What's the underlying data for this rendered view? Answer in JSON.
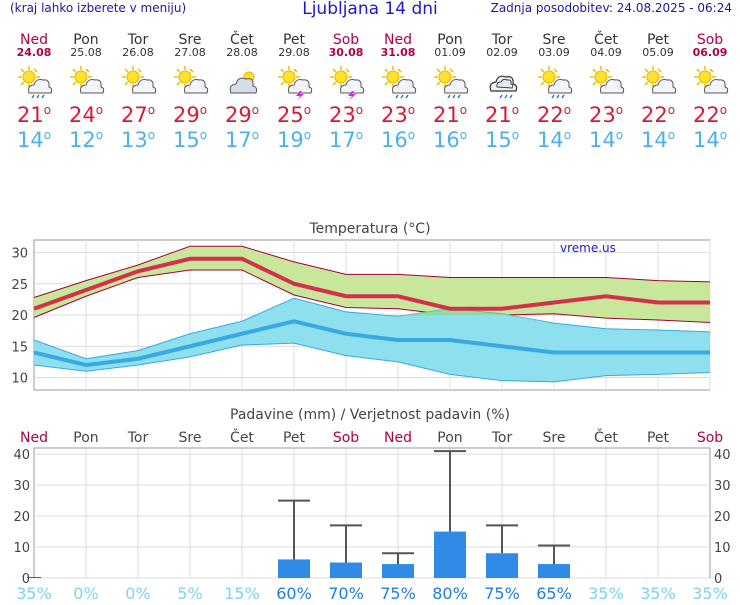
{
  "header": {
    "left_note": "(kraj lahko izberete v meniju)",
    "title": "Ljubljana 14 dni",
    "updated": "Zadnja posodobitev: 24.08.2025 - 06:24"
  },
  "days": [
    {
      "name": "Ned",
      "date": "24.08",
      "weekend": true,
      "icon": "sun-cloud-rain-icon",
      "tmax": "21",
      "tmin": "14"
    },
    {
      "name": "Pon",
      "date": "25.08",
      "weekend": false,
      "icon": "sun-cloud-icon",
      "tmax": "24",
      "tmin": "12"
    },
    {
      "name": "Tor",
      "date": "26.08",
      "weekend": false,
      "icon": "sun-cloud-icon",
      "tmax": "27",
      "tmin": "13"
    },
    {
      "name": "Sre",
      "date": "27.08",
      "weekend": false,
      "icon": "sun-cloud-icon",
      "tmax": "29",
      "tmin": "15"
    },
    {
      "name": "Čet",
      "date": "28.08",
      "weekend": false,
      "icon": "cloud-sun-icon",
      "tmax": "29",
      "tmin": "17"
    },
    {
      "name": "Pet",
      "date": "29.08",
      "weekend": false,
      "icon": "sun-cloud-storm-icon",
      "tmax": "25",
      "tmin": "19"
    },
    {
      "name": "Sob",
      "date": "30.08",
      "weekend": true,
      "icon": "sun-cloud-storm-icon",
      "tmax": "23",
      "tmin": "17"
    },
    {
      "name": "Ned",
      "date": "31.08",
      "weekend": true,
      "icon": "sun-cloud-rain-icon",
      "tmax": "23",
      "tmin": "16"
    },
    {
      "name": "Pon",
      "date": "01.09",
      "weekend": false,
      "icon": "sun-cloud-rain-icon",
      "tmax": "21",
      "tmin": "16"
    },
    {
      "name": "Tor",
      "date": "02.09",
      "weekend": false,
      "icon": "cloud-rain-icon",
      "tmax": "21",
      "tmin": "15"
    },
    {
      "name": "Sre",
      "date": "03.09",
      "weekend": false,
      "icon": "sun-cloud-rain-icon",
      "tmax": "22",
      "tmin": "14"
    },
    {
      "name": "Čet",
      "date": "04.09",
      "weekend": false,
      "icon": "sun-cloud-icon",
      "tmax": "23",
      "tmin": "14"
    },
    {
      "name": "Pet",
      "date": "05.09",
      "weekend": false,
      "icon": "sun-cloud-icon",
      "tmax": "22",
      "tmin": "14"
    },
    {
      "name": "Sob",
      "date": "06.09",
      "weekend": true,
      "icon": "sun-cloud-icon",
      "tmax": "22",
      "tmin": "14"
    }
  ],
  "degree_symbol": "o",
  "chart_data": [
    {
      "type": "line",
      "title": "Temperatura (°C)",
      "watermark": "vreme.us",
      "categories": [
        "Ned",
        "Pon",
        "Tor",
        "Sre",
        "Čet",
        "Pet",
        "Sob",
        "Ned",
        "Pon",
        "Tor",
        "Sre",
        "Čet",
        "Pet",
        "Sob"
      ],
      "ylim": [
        8,
        32
      ],
      "yticks": [
        10,
        15,
        20,
        25,
        30
      ],
      "grid": true,
      "colors": {
        "max": "#d5304b",
        "max_band": "#c9e79b",
        "min": "#3aa8e3",
        "min_band": "#8fe0ee",
        "overlap": "#8fd88f"
      },
      "series": [
        {
          "name": "max",
          "values": [
            21,
            24,
            27,
            29,
            29,
            25,
            23,
            23,
            21,
            21,
            22,
            23,
            22,
            22
          ],
          "upper": [
            22.8,
            25.5,
            28,
            31,
            31,
            28.5,
            26.5,
            26.5,
            26,
            26,
            26,
            26,
            25.5,
            25.3
          ],
          "lower": [
            19.6,
            23,
            26,
            27.2,
            27.2,
            23.2,
            21.2,
            21,
            20,
            20,
            20.2,
            19.5,
            19.2,
            18.8
          ]
        },
        {
          "name": "min",
          "values": [
            14,
            12,
            13,
            15,
            17,
            19,
            17,
            16,
            16,
            15,
            14,
            14,
            14,
            14
          ],
          "upper": [
            16,
            13,
            14.3,
            17,
            19,
            22.7,
            20.5,
            19.8,
            21,
            20.2,
            18.7,
            17.8,
            17.6,
            17.3
          ],
          "lower": [
            12,
            11,
            12,
            13.3,
            15.2,
            15.5,
            13.5,
            12.5,
            10.5,
            9.5,
            9.3,
            10.3,
            10.5,
            10.8
          ]
        }
      ]
    },
    {
      "type": "bar",
      "title": "Padavine (mm) / Verjetnost padavin (%)",
      "categories": [
        "Ned",
        "Pon",
        "Tor",
        "Sre",
        "Čet",
        "Pet",
        "Sob",
        "Ned",
        "Pon",
        "Tor",
        "Sre",
        "Čet",
        "Pet",
        "Sob"
      ],
      "weekend": [
        true,
        false,
        false,
        false,
        false,
        false,
        true,
        true,
        false,
        false,
        false,
        false,
        false,
        true
      ],
      "ylim": [
        0,
        42
      ],
      "yticks": [
        0,
        10,
        20,
        30,
        40
      ],
      "values": [
        0.3,
        0,
        0,
        0,
        0,
        6,
        5,
        4.5,
        15,
        8,
        4.5,
        0,
        0,
        0
      ],
      "err_high": [
        0.3,
        0,
        0,
        0,
        0,
        25,
        17,
        8,
        41,
        17,
        10.5,
        0,
        0,
        0
      ],
      "probabilities": [
        "35%",
        "0%",
        "0%",
        "5%",
        "15%",
        "60%",
        "70%",
        "75%",
        "80%",
        "75%",
        "65%",
        "35%",
        "35%",
        "35%"
      ],
      "bar_color": "#2f8be6"
    }
  ]
}
